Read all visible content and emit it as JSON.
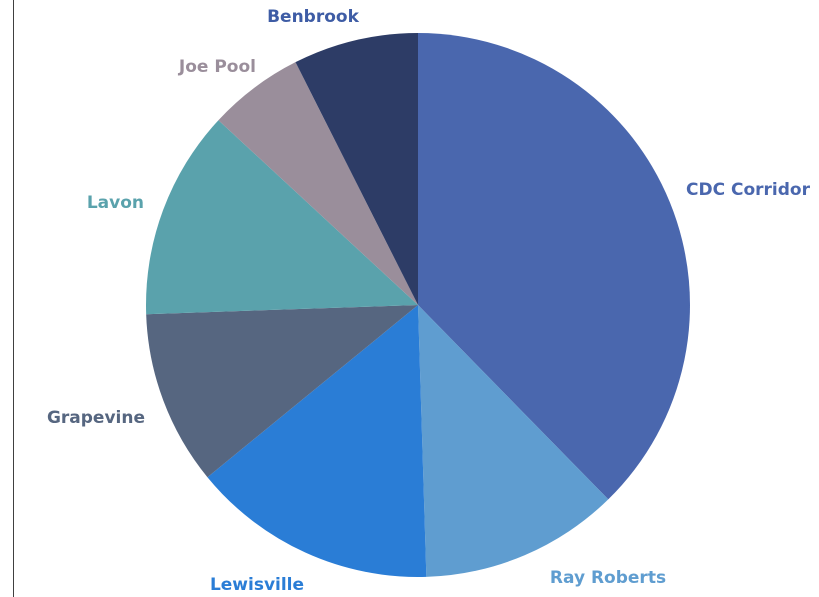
{
  "chart_data": {
    "type": "pie",
    "title": "",
    "slices": [
      {
        "label": "CDC Corridor",
        "value": 38.5,
        "color": "#4A67AE",
        "label_color": "#4A67AE"
      },
      {
        "label": "Ray Roberts",
        "value": 12.1,
        "color": "#5F9DD0",
        "label_color": "#5F9DD0"
      },
      {
        "label": "Lewisville",
        "value": 14.9,
        "color": "#2A7DD6",
        "label_color": "#2A7DD6"
      },
      {
        "label": "Grapevine",
        "value": 10.6,
        "color": "#566680",
        "label_color": "#566680"
      },
      {
        "label": "Lavon",
        "value": 12.7,
        "color": "#5AA2AC",
        "label_color": "#5AA2AC"
      },
      {
        "label": "Joe Pool",
        "value": 5.8,
        "color": "#9A8E9B",
        "label_color": "#9A8E9B"
      },
      {
        "label": "Benbrook",
        "value": 7.6,
        "color": "#2D3C66",
        "label_color": "#3E5CA5"
      }
    ],
    "start_angle_deg": 0,
    "direction": "clockwise",
    "legend": "none"
  }
}
